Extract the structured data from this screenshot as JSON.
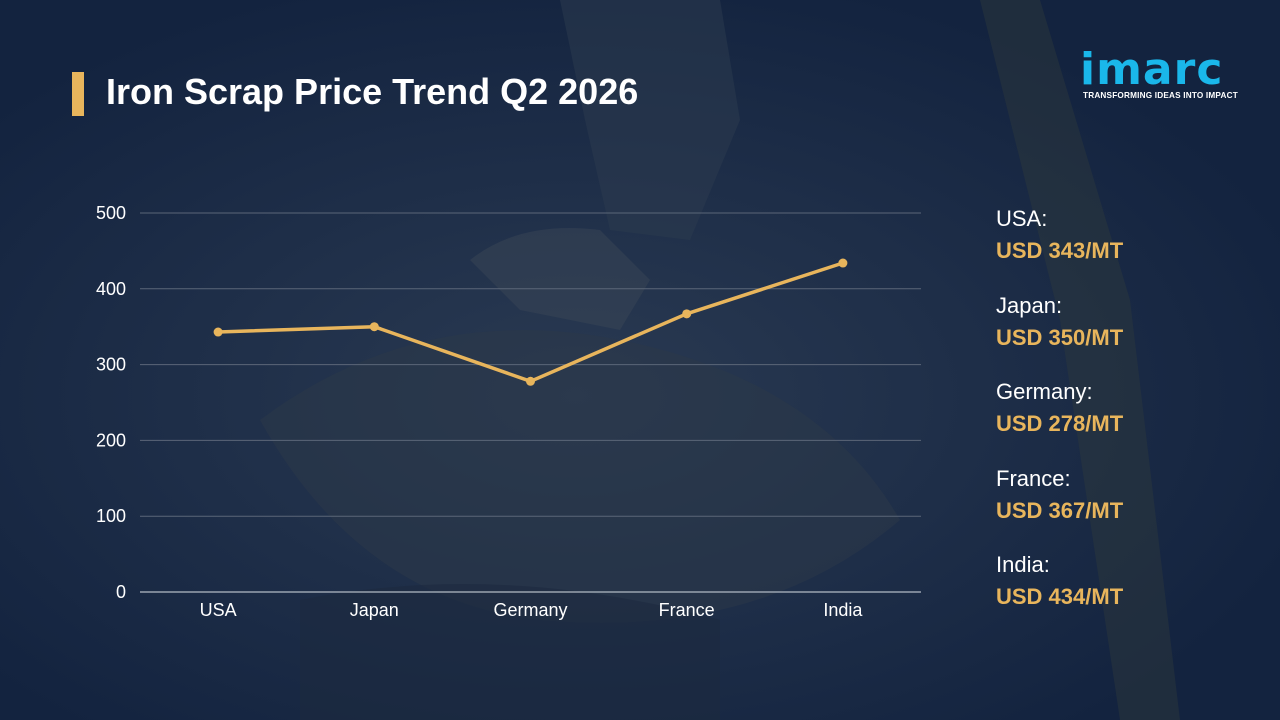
{
  "header": {
    "title": "Iron Scrap Price Trend Q2 2026"
  },
  "logo": {
    "name": "imarc",
    "tagline": "TRANSFORMING IDEAS INTO IMPACT"
  },
  "colors": {
    "accent": "#e8b55c",
    "brand": "#1ab7ea",
    "background": "#13233f"
  },
  "chart_data": {
    "type": "line",
    "title": "Iron Scrap Price Trend Q2 2026",
    "xlabel": "",
    "ylabel": "",
    "categories": [
      "USA",
      "Japan",
      "Germany",
      "France",
      "India"
    ],
    "series": [
      {
        "values": [
          343,
          350,
          278,
          367,
          434
        ]
      }
    ],
    "ylim": [
      0,
      500
    ],
    "yticks": [
      0,
      100,
      200,
      300,
      400,
      500
    ],
    "grid": true
  },
  "legend": {
    "items": [
      {
        "country": "USA:",
        "value": "USD 343/MT"
      },
      {
        "country": "Japan:",
        "value": "USD 350/MT"
      },
      {
        "country": "Germany:",
        "value": "USD 278/MT"
      },
      {
        "country": "France:",
        "value": "USD 367/MT"
      },
      {
        "country": "India:",
        "value": "USD 434/MT"
      }
    ]
  }
}
